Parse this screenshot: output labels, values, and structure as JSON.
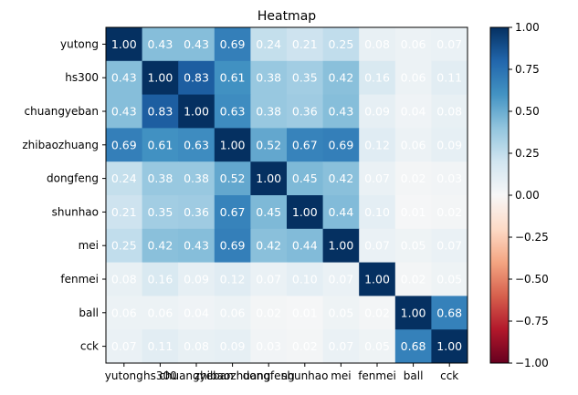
{
  "chart_data": {
    "type": "heatmap",
    "title": "Heatmap",
    "xlabel": "",
    "ylabel": "",
    "labels": [
      "yutong",
      "hs300",
      "chuangyeban",
      "zhibaozhuang",
      "dongfeng",
      "shunhao",
      "mei",
      "fenmei",
      "ball",
      "cck"
    ],
    "values": [
      [
        1.0,
        0.43,
        0.43,
        0.69,
        0.24,
        0.21,
        0.25,
        0.08,
        0.06,
        0.07
      ],
      [
        0.43,
        1.0,
        0.83,
        0.61,
        0.38,
        0.35,
        0.42,
        0.16,
        0.06,
        0.11
      ],
      [
        0.43,
        0.83,
        1.0,
        0.63,
        0.38,
        0.36,
        0.43,
        0.09,
        0.04,
        0.08
      ],
      [
        0.69,
        0.61,
        0.63,
        1.0,
        0.52,
        0.67,
        0.69,
        0.12,
        0.06,
        0.09
      ],
      [
        0.24,
        0.38,
        0.38,
        0.52,
        1.0,
        0.45,
        0.42,
        0.07,
        0.02,
        0.03
      ],
      [
        0.21,
        0.35,
        0.36,
        0.67,
        0.45,
        1.0,
        0.44,
        0.1,
        0.01,
        0.02
      ],
      [
        0.25,
        0.42,
        0.43,
        0.69,
        0.42,
        0.44,
        1.0,
        0.07,
        0.05,
        0.07
      ],
      [
        0.08,
        0.16,
        0.09,
        0.12,
        0.07,
        0.1,
        0.07,
        1.0,
        0.02,
        0.05
      ],
      [
        0.06,
        0.06,
        0.04,
        0.06,
        0.02,
        0.01,
        0.05,
        0.02,
        1.0,
        0.68
      ],
      [
        0.07,
        0.11,
        0.08,
        0.09,
        0.03,
        0.02,
        0.07,
        0.05,
        0.68,
        1.0
      ]
    ],
    "value_format": "2 decimals",
    "colormap": "RdBu",
    "color_range": [
      -1.0,
      1.0
    ],
    "colorbar": {
      "ticks": [
        -1.0,
        -0.75,
        -0.5,
        -0.25,
        0.0,
        0.25,
        0.5,
        0.75,
        1.0
      ],
      "tick_labels": [
        "−1.00",
        "−0.75",
        "−0.50",
        "−0.25",
        "0.00",
        "0.25",
        "0.50",
        "0.75",
        "1.00"
      ],
      "placement": "right"
    },
    "grid": false
  }
}
